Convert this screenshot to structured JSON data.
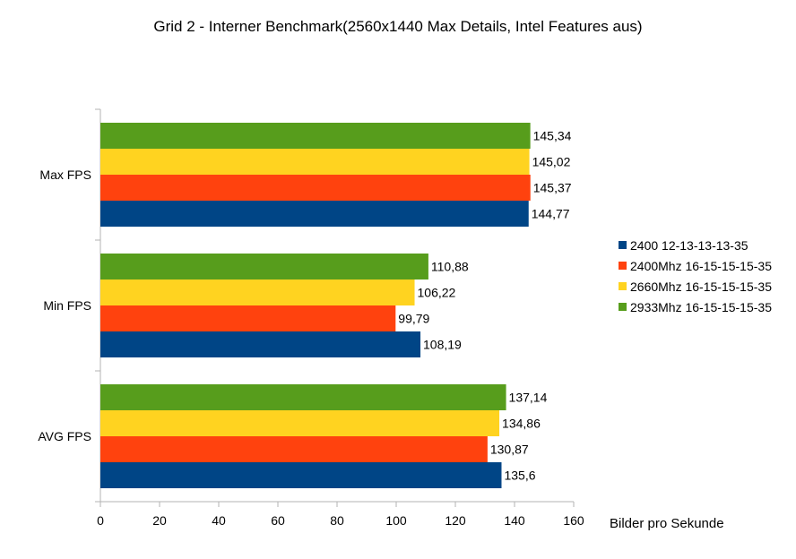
{
  "chart_data": {
    "type": "bar",
    "orientation": "horizontal",
    "title": "Grid 2 - Interner Benchmark(2560x1440 Max Details, Intel Features aus)",
    "xlabel": "Bilder pro Sekunde",
    "ylabel": "",
    "xlim": [
      0,
      160
    ],
    "x_ticks": [
      0,
      20,
      40,
      60,
      80,
      100,
      120,
      140,
      160
    ],
    "grid": false,
    "legend_position": "right",
    "categories": [
      "Max FPS",
      "Min FPS",
      "AVG FPS"
    ],
    "series": [
      {
        "name": "2400 12-13-13-13-35",
        "color": "#004586",
        "values": [
          144.77,
          108.19,
          135.6
        ],
        "labels": [
          "144,77",
          "108,19",
          "135,6"
        ]
      },
      {
        "name": "2400Mhz 16-15-15-15-35",
        "color": "#ff420e",
        "values": [
          145.37,
          99.79,
          130.87
        ],
        "labels": [
          "145,37",
          "99,79",
          "130,87"
        ]
      },
      {
        "name": "2660Mhz 16-15-15-15-35",
        "color": "#ffd320",
        "values": [
          145.02,
          106.22,
          134.86
        ],
        "labels": [
          "145,02",
          "106,22",
          "134,86"
        ]
      },
      {
        "name": "2933Mhz 16-15-15-15-35",
        "color": "#579d1c",
        "values": [
          145.34,
          110.88,
          137.14
        ],
        "labels": [
          "145,34",
          "110,88",
          "137,14"
        ]
      }
    ]
  }
}
